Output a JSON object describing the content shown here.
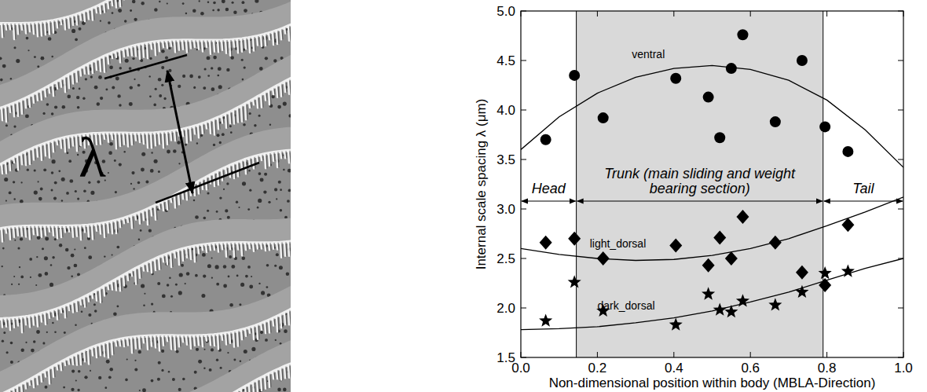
{
  "chart_data": {
    "type": "scatter",
    "x_label": "Non-dimensional position within body (MBLA-Direction)",
    "y_label": "Internal scale spacing λ (μm)",
    "xlim": [
      0,
      1
    ],
    "xticks": [
      {
        "value": 0,
        "label": "0.0"
      },
      0.2,
      0.4,
      0.6,
      0.8,
      {
        "value": 1,
        "label": "1.0"
      }
    ],
    "ylim": [
      1.5,
      5
    ],
    "yticks": [
      1.5,
      {
        "value": 2,
        "label": "2.0"
      },
      2.5,
      {
        "value": 3,
        "label": "3.0"
      },
      3.5,
      {
        "value": 4,
        "label": "4.0"
      },
      4.5,
      {
        "value": 5,
        "label": "5.0"
      }
    ],
    "grid": false,
    "series": [
      {
        "name": "ventral",
        "color": "#000000",
        "marker": "circle",
        "x": [
          0.065,
          0.14,
          0.215,
          0.405,
          0.49,
          0.52,
          0.55,
          0.58,
          0.665,
          0.735,
          0.795,
          0.855
        ],
        "values": [
          3.7,
          4.35,
          3.92,
          4.32,
          4.13,
          3.72,
          4.42,
          4.76,
          3.88,
          4.5,
          3.83,
          3.58
        ],
        "fit_x": [
          0,
          0.1,
          0.2,
          0.3,
          0.4,
          0.5,
          0.6,
          0.7,
          0.8,
          0.9,
          1
        ],
        "fit_values": [
          3.6,
          3.93,
          4.17,
          4.33,
          4.42,
          4.45,
          4.41,
          4.3,
          4.1,
          3.8,
          3.42
        ]
      },
      {
        "name": "light_dorsal",
        "color": "#000000",
        "marker": "diamond",
        "x": [
          0.065,
          0.14,
          0.215,
          0.405,
          0.49,
          0.52,
          0.55,
          0.58,
          0.665,
          0.735,
          0.795,
          0.855
        ],
        "values": [
          2.66,
          2.7,
          2.5,
          2.63,
          2.43,
          2.71,
          2.5,
          2.92,
          2.66,
          2.36,
          2.23,
          2.84
        ],
        "fit_x": [
          0,
          0.1,
          0.2,
          0.3,
          0.4,
          0.5,
          0.6,
          0.7,
          0.8,
          0.9,
          1
        ],
        "fit_values": [
          2.6,
          2.54,
          2.5,
          2.48,
          2.49,
          2.53,
          2.6,
          2.7,
          2.83,
          2.97,
          3.12
        ]
      },
      {
        "name": "dark_dorsal",
        "color": "#000000",
        "marker": "star",
        "x": [
          0.065,
          0.14,
          0.215,
          0.405,
          0.49,
          0.52,
          0.55,
          0.58,
          0.665,
          0.735,
          0.795,
          0.855
        ],
        "values": [
          1.87,
          2.26,
          1.97,
          1.83,
          2.14,
          1.98,
          1.96,
          2.07,
          2.03,
          2.16,
          2.35,
          2.37
        ],
        "fit_x": [
          0,
          0.1,
          0.2,
          0.3,
          0.4,
          0.5,
          0.6,
          0.7,
          0.8,
          0.9,
          1
        ],
        "fit_values": [
          1.78,
          1.79,
          1.81,
          1.85,
          1.9,
          1.97,
          2.06,
          2.16,
          2.28,
          2.4,
          2.5
        ]
      }
    ],
    "regions": [
      {
        "label": "Head",
        "start": 0,
        "end": 0.145,
        "shaded": false
      },
      {
        "label": "Trunk (main sliding and weight bearing section)",
        "start": 0.145,
        "end": 0.79,
        "shaded": true
      },
      {
        "label": "Tail",
        "start": 0.79,
        "end": 1,
        "shaded": false
      }
    ]
  },
  "micrograph": {
    "label": "λ"
  }
}
